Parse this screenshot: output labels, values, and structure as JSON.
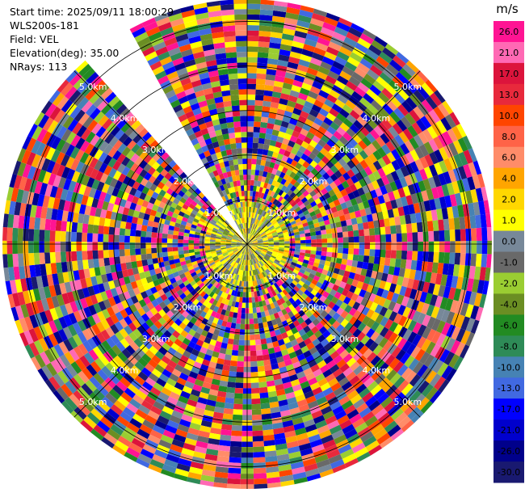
{
  "info": {
    "start_time": "Start time: 2025/09/11 18:00:29",
    "station": "WLS200s-181",
    "field": "Field: VEL",
    "elevation": "Elevation(deg): 35.00",
    "nrays": "NRays: 113"
  },
  "colorbar": {
    "unit": "m/s",
    "ticks": [
      "26.0",
      "21.0",
      "17.0",
      "13.0",
      "10.0",
      "8.0",
      "6.0",
      "4.0",
      "2.0",
      "1.0",
      "0.0",
      "-1.0",
      "-2.0",
      "-4.0",
      "-6.0",
      "-8.0",
      "-10.0",
      "-13.0",
      "-17.0",
      "-21.0",
      "-26.0",
      "-30.0"
    ],
    "colors": [
      "#ff1493",
      "#ff69b4",
      "#dc143c",
      "#e8293c",
      "#ff4500",
      "#ff6347",
      "#ff8c69",
      "#ffa500",
      "#ffd700",
      "#ffff00",
      "#778899",
      "#696969",
      "#9acd32",
      "#6b8e23",
      "#228b22",
      "#2e8b57",
      "#4682b4",
      "#4169e1",
      "#0000ff",
      "#0000cd",
      "#00008b",
      "#191970"
    ]
  },
  "chart_data": {
    "type": "heatmap",
    "projection": "polar PPI",
    "field": "VEL",
    "units": "m/s",
    "nrays": 113,
    "elevation_deg": 35.0,
    "range_rings_km": [
      1.0,
      2.0,
      3.0,
      4.0,
      5.0
    ],
    "range_labels": [
      "1.0km",
      "2.0km",
      "3.0km",
      "4.0km",
      "5.0km"
    ],
    "max_range_km": 5.5,
    "missing_sector_deg": [
      320,
      332
    ],
    "notes_visible": [
      "near-range values mostly 0 to 4 m/s (gray/yellow)",
      "outer range noisy, full color scale"
    ]
  }
}
